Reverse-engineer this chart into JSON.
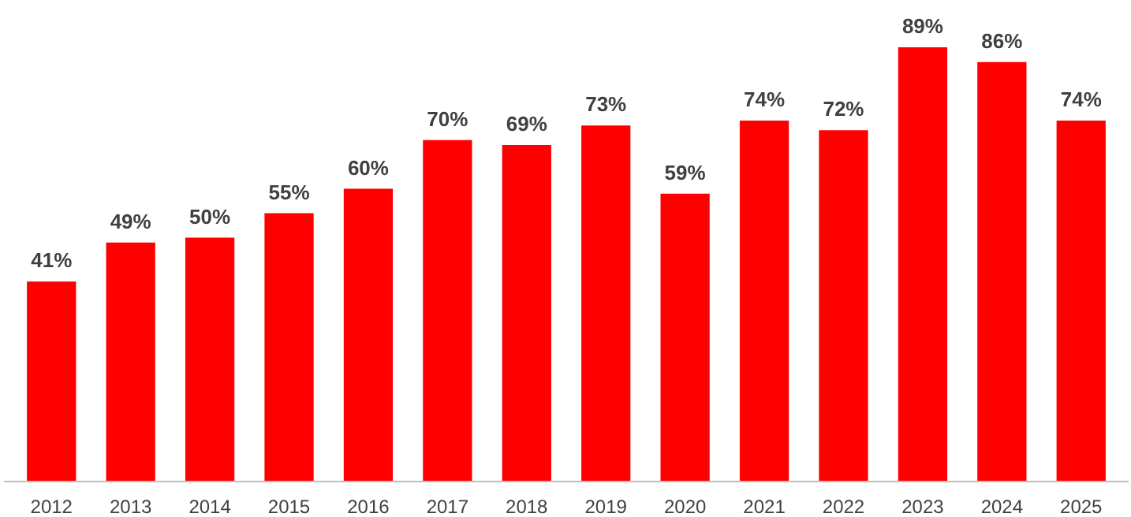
{
  "chart_data": {
    "type": "bar",
    "categories": [
      "2012",
      "2013",
      "2014",
      "2015",
      "2016",
      "2017",
      "2018",
      "2019",
      "2020",
      "2021",
      "2022",
      "2023",
      "2024",
      "2025"
    ],
    "values": [
      41,
      49,
      50,
      55,
      60,
      70,
      69,
      73,
      59,
      74,
      72,
      89,
      86,
      74
    ],
    "value_labels": [
      "41%",
      "49%",
      "50%",
      "55%",
      "60%",
      "70%",
      "69%",
      "73%",
      "59%",
      "74%",
      "72%",
      "89%",
      "86%",
      "74%"
    ],
    "color": "#ff0000",
    "grid": false
  }
}
